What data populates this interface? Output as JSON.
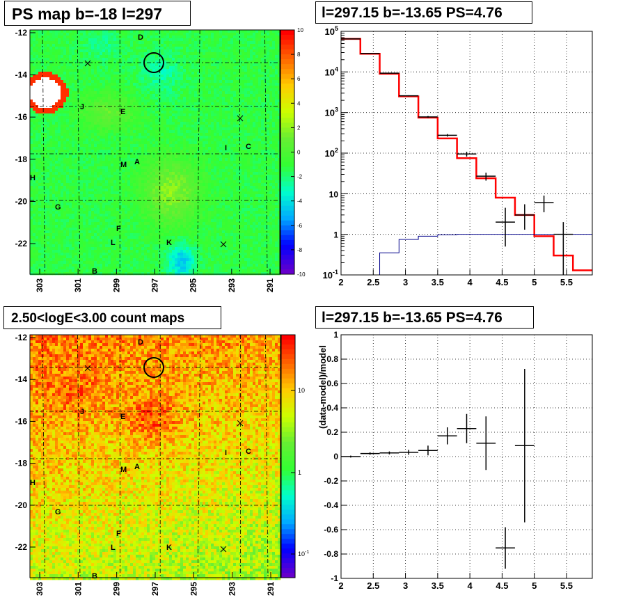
{
  "panels": {
    "ps_map_title": "PS map b=-18 l=297",
    "spectrum_title": "l=297.15 b=-13.65 PS=4.76",
    "count_map_title": "2.50<logE<3.00 count maps",
    "residual_title": "l=297.15 b=-13.65 PS=4.76"
  },
  "chart_data": [
    {
      "type": "heatmap",
      "name": "ps-map",
      "title": "PS map b=-18 l=297",
      "x_ticks": [
        "303",
        "301",
        "299",
        "297",
        "295",
        "293",
        "291"
      ],
      "y_ticks": [
        "-12",
        "-14",
        "-16",
        "-18",
        "-20",
        "-22"
      ],
      "colorbar_ticks": [
        "10",
        "8",
        "6",
        "4",
        "2",
        "0",
        "-2",
        "-4",
        "-6",
        "-8",
        "-10"
      ],
      "zlim": [
        -10,
        10
      ],
      "source_labels": [
        "D",
        "J",
        "E",
        "I",
        "C",
        "M",
        "A",
        "H",
        "G",
        "F",
        "L",
        "K",
        "B"
      ],
      "colors": [
        "#6600cc",
        "#0000ff",
        "#00aaff",
        "#00ffcc",
        "#33ff33",
        "#66ee33",
        "#ccff00",
        "#ffcc00",
        "#ff6600",
        "#ff0000"
      ]
    },
    {
      "type": "line",
      "name": "spectrum",
      "title": "l=297.15 b=-13.65 PS=4.76",
      "xlim": [
        2,
        5.9
      ],
      "ylim": [
        0.1,
        100000
      ],
      "log_y": true,
      "x_ticks": [
        "2",
        "2.5",
        "3",
        "3.5",
        "4",
        "4.5",
        "5",
        "5.5"
      ],
      "y_ticks": [
        "10^-1",
        "1",
        "10",
        "10^2",
        "10^3",
        "10^4",
        "10^5"
      ],
      "grid": true,
      "series": [
        {
          "color": "#ff0000",
          "step_edges": [
            2.0,
            2.3,
            2.6,
            2.9,
            3.2,
            3.5,
            3.8,
            4.1,
            4.4,
            4.7,
            5.0,
            5.3,
            5.6,
            5.9
          ],
          "values": [
            65000,
            28000,
            9000,
            2500,
            750,
            230,
            75,
            24,
            8,
            3,
            0.9,
            0.3,
            0.13
          ]
        },
        {
          "color": "#00008b",
          "step_edges": [
            2.0,
            2.3,
            2.6,
            2.9,
            3.2,
            3.5,
            3.8,
            4.1,
            4.4,
            4.7,
            5.0,
            5.3,
            5.6,
            5.9
          ],
          "values": [
            0.1,
            0.1,
            0.35,
            0.75,
            0.9,
            0.97,
            1,
            1,
            1,
            1,
            1,
            1,
            1
          ]
        },
        {
          "color": "#000000",
          "points": [
            {
              "x": 2.15,
              "y": 65000,
              "xerr": 0.15,
              "ylo": 64000,
              "yhi": 66000
            },
            {
              "x": 2.45,
              "y": 28500,
              "xerr": 0.15,
              "ylo": 28000,
              "yhi": 29000
            },
            {
              "x": 2.75,
              "y": 9300,
              "xerr": 0.15,
              "ylo": 9100,
              "yhi": 9500
            },
            {
              "x": 3.05,
              "y": 2580,
              "xerr": 0.15,
              "ylo": 2500,
              "yhi": 2660
            },
            {
              "x": 3.35,
              "y": 780,
              "xerr": 0.15,
              "ylo": 740,
              "yhi": 820
            },
            {
              "x": 3.65,
              "y": 275,
              "xerr": 0.15,
              "ylo": 255,
              "yhi": 295
            },
            {
              "x": 3.95,
              "y": 95,
              "xerr": 0.15,
              "ylo": 82,
              "yhi": 108
            },
            {
              "x": 4.25,
              "y": 27,
              "xerr": 0.15,
              "ylo": 21,
              "yhi": 33
            },
            {
              "x": 4.55,
              "y": 2,
              "xerr": 0.15,
              "ylo": 0.5,
              "yhi": 4.5
            },
            {
              "x": 4.85,
              "y": 3,
              "xerr": 0.15,
              "ylo": 1.3,
              "yhi": 5.5
            },
            {
              "x": 5.15,
              "y": 6,
              "xerr": 0.15,
              "ylo": 3.5,
              "yhi": 9
            },
            {
              "x": 5.45,
              "y": 1,
              "xerr": 0.15,
              "ylo": 0.1,
              "yhi": 2
            }
          ]
        }
      ]
    },
    {
      "type": "heatmap",
      "name": "count-map",
      "title": "2.50<logE<3.00 count maps",
      "x_ticks": [
        "303",
        "301",
        "299",
        "297",
        "295",
        "293",
        "291"
      ],
      "y_ticks": [
        "-12",
        "-14",
        "-16",
        "-18",
        "-20",
        "-22"
      ],
      "colorbar_ticks": [
        "10",
        "1",
        "10^-1"
      ],
      "log_z": true,
      "source_labels": [
        "D",
        "J",
        "E",
        "I",
        "C",
        "M",
        "A",
        "H",
        "G",
        "F",
        "L",
        "K",
        "B"
      ],
      "colors": [
        "#6600cc",
        "#0000ff",
        "#00aaff",
        "#00ffcc",
        "#33ff33",
        "#66ee33",
        "#ccff00",
        "#ffcc00",
        "#ff6600",
        "#ff0000"
      ]
    },
    {
      "type": "scatter",
      "name": "residuals",
      "title": "l=297.15 b=-13.65 PS=4.76",
      "ylabel": "(data-model)/model",
      "xlim": [
        2,
        5.9
      ],
      "ylim": [
        -1,
        1
      ],
      "x_ticks": [
        "2",
        "2.5",
        "3",
        "3.5",
        "4",
        "4.5",
        "5",
        "5.5"
      ],
      "y_ticks": [
        "1",
        "0.8",
        "0.6",
        "0.4",
        "0.2",
        "0",
        "-0.2",
        "-0.4",
        "-0.6",
        "-0.8",
        "-1"
      ],
      "grid": true,
      "points": [
        {
          "x": 2.15,
          "y": 0.0,
          "xerr": 0.15,
          "err": 0.008
        },
        {
          "x": 2.45,
          "y": 0.025,
          "xerr": 0.15,
          "err": 0.01
        },
        {
          "x": 2.75,
          "y": 0.03,
          "xerr": 0.15,
          "err": 0.012
        },
        {
          "x": 3.05,
          "y": 0.035,
          "xerr": 0.15,
          "err": 0.02
        },
        {
          "x": 3.35,
          "y": 0.05,
          "xerr": 0.15,
          "err": 0.04
        },
        {
          "x": 3.65,
          "y": 0.17,
          "xerr": 0.15,
          "err": 0.07
        },
        {
          "x": 3.95,
          "y": 0.23,
          "xerr": 0.15,
          "err": 0.12
        },
        {
          "x": 4.25,
          "y": 0.11,
          "xerr": 0.15,
          "err": 0.22
        },
        {
          "x": 4.55,
          "y": -0.75,
          "xerr": 0.15,
          "err": 0.17
        },
        {
          "x": 4.85,
          "y": 0.09,
          "xerr": 0.15,
          "err": 0.63
        }
      ]
    }
  ]
}
